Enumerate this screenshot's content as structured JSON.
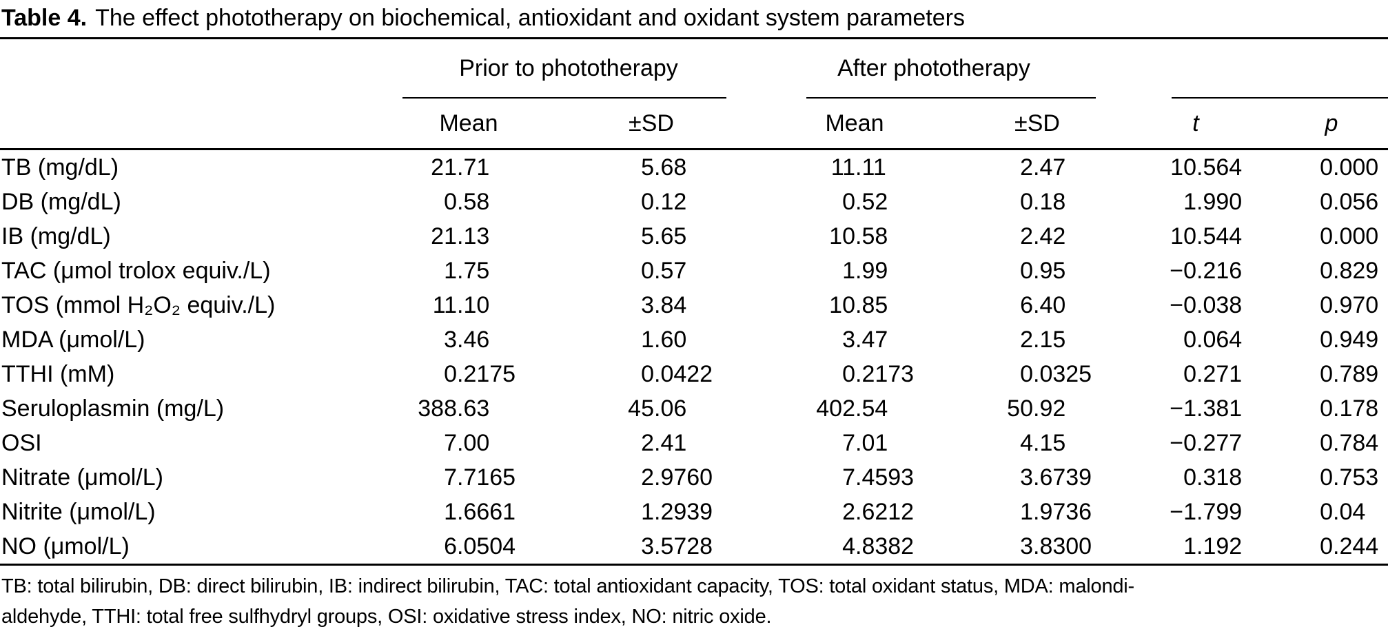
{
  "title": {
    "label": "Table 4.",
    "text": "The effect phototherapy on biochemical, antioxidant and oxidant system parameters"
  },
  "header": {
    "groups": [
      {
        "label": "Prior to phototherapy"
      },
      {
        "label": "After phototherapy"
      },
      {
        "label": ""
      }
    ],
    "subheaders": [
      "Mean",
      "±SD",
      "Mean",
      "±SD",
      "t",
      "p"
    ]
  },
  "table": {
    "rows": [
      {
        "label": "TB (mg/dL)",
        "prior_mean": "21.71",
        "prior_sd": "5.68",
        "after_mean": "11.11",
        "after_sd": "2.47",
        "t": "10.564",
        "p": "0.000"
      },
      {
        "label": "DB (mg/dL)",
        "prior_mean": "0.58",
        "prior_sd": "0.12",
        "after_mean": "0.52",
        "after_sd": "0.18",
        "t": "1.990",
        "p": "0.056"
      },
      {
        "label": "IB (mg/dL)",
        "prior_mean": "21.13",
        "prior_sd": "5.65",
        "after_mean": "10.58",
        "after_sd": "2.42",
        "t": "10.544",
        "p": "0.000"
      },
      {
        "label": "TAC (μmol trolox equiv./L)",
        "prior_mean": "1.75",
        "prior_sd": "0.57",
        "after_mean": "1.99",
        "after_sd": "0.95",
        "t": "−0.216",
        "p": "0.829"
      },
      {
        "label": "TOS (mmol H₂O₂ equiv./L)",
        "prior_mean": "11.10",
        "prior_sd": "3.84",
        "after_mean": "10.85",
        "after_sd": "6.40",
        "t": "−0.038",
        "p": "0.970"
      },
      {
        "label": "MDA (μmol/L)",
        "prior_mean": "3.46",
        "prior_sd": "1.60",
        "after_mean": "3.47",
        "after_sd": "2.15",
        "t": "0.064",
        "p": "0.949"
      },
      {
        "label": "TTHI (mM)",
        "prior_mean": "0.2175",
        "prior_sd": "0.0422",
        "after_mean": "0.2173",
        "after_sd": "0.0325",
        "t": "0.271",
        "p": "0.789"
      },
      {
        "label": "Seruloplasmin (mg/L)",
        "prior_mean": "388.63",
        "prior_sd": "45.06",
        "after_mean": "402.54",
        "after_sd": "50.92",
        "t": "−1.381",
        "p": "0.178"
      },
      {
        "label": "OSI",
        "prior_mean": "7.00",
        "prior_sd": "2.41",
        "after_mean": "7.01",
        "after_sd": "4.15",
        "t": "−0.277",
        "p": "0.784"
      },
      {
        "label": "Nitrate (μmol/L)",
        "prior_mean": "7.7165",
        "prior_sd": "2.9760",
        "after_mean": "7.4593",
        "after_sd": "3.6739",
        "t": "0.318",
        "p": "0.753"
      },
      {
        "label": "Nitrite (μmol/L)",
        "prior_mean": "1.6661",
        "prior_sd": "1.2939",
        "after_mean": "2.6212",
        "after_sd": "1.9736",
        "t": "−1.799",
        "p": "0.04"
      },
      {
        "label": "NO (μmol/L)",
        "prior_mean": "6.0504",
        "prior_sd": "3.5728",
        "after_mean": "4.8382",
        "after_sd": "3.8300",
        "t": "1.192",
        "p": "0.244"
      }
    ]
  },
  "footnote": {
    "lines": [
      "TB: total bilirubin, DB: direct bilirubin, IB: indirect bilirubin, TAC: total antioxidant capacity, TOS: total oxidant status, MDA: malondi-",
      "aldehyde, TTHI: total free sulfhydryl groups, OSI: oxidative stress index, NO: nitric oxide."
    ]
  },
  "colors": {
    "text": "#000000",
    "background": "#ffffff",
    "rule": "#000000"
  }
}
